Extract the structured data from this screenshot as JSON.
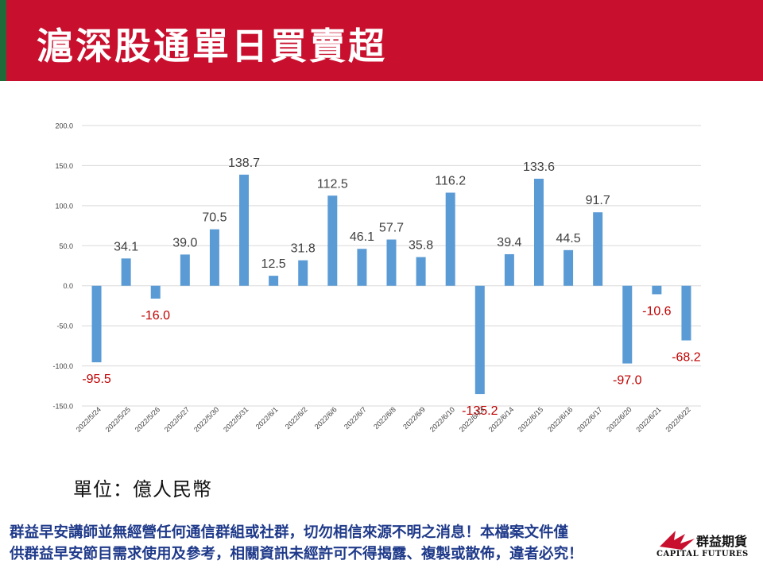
{
  "header": {
    "title": "滬深股通單日買賣超"
  },
  "unit_label": "單位：億人民幣",
  "disclaimer": {
    "line1": "群益早安講師並無經營任何通信群組或社群，切勿相信來源不明之消息！本檔案文件僅",
    "line2": "供群益早安節目需求使用及參考，相關資訊未經許可不得揭露、複製或散佈，違者必究！"
  },
  "logo": {
    "name_cn": "群益期貨",
    "name_en": "CAPITAL FUTURES",
    "icon": "capital-futures-logo-icon"
  },
  "colors": {
    "header": "#c8102e",
    "stripe": "#1f6b3a",
    "bar": "#5b9bd5",
    "negative_label": "#c00000",
    "positive_label": "#404040",
    "disclaimer": "#1f3a8a"
  },
  "chart_data": {
    "type": "bar",
    "categories": [
      "2022/5/24",
      "2022/5/25",
      "2022/5/26",
      "2022/5/27",
      "2022/5/30",
      "2022/5/31",
      "2022/6/1",
      "2022/6/2",
      "2022/6/6",
      "2022/6/7",
      "2022/6/8",
      "2022/6/9",
      "2022/6/10",
      "2022/6/13",
      "2022/6/14",
      "2022/6/15",
      "2022/6/16",
      "2022/6/17",
      "2022/6/20",
      "2022/6/21",
      "2022/6/22"
    ],
    "values": [
      -95.5,
      34.1,
      -16.0,
      39.0,
      70.5,
      138.7,
      12.5,
      31.8,
      112.5,
      46.1,
      57.7,
      35.8,
      116.2,
      -135.2,
      39.4,
      133.6,
      44.5,
      91.7,
      -97.0,
      -10.6,
      -68.2
    ],
    "data_labels": [
      "-95.5",
      "34.1",
      "-16.0",
      "39.0",
      "70.5",
      "138.7",
      "12.5",
      "31.8",
      "112.5",
      "46.1",
      "57.7",
      "35.8",
      "116.2",
      "-135.2",
      "39.4",
      "133.6",
      "44.5",
      "91.7",
      "-97.0",
      "-10.6",
      "-68.2"
    ],
    "yticks": [
      "200.0",
      "150.0",
      "100.0",
      "50.0",
      "0.0",
      "-50.0",
      "-100.0",
      "-150.0"
    ],
    "ylim": [
      -150,
      200
    ],
    "grid": true,
    "legend": "none"
  }
}
